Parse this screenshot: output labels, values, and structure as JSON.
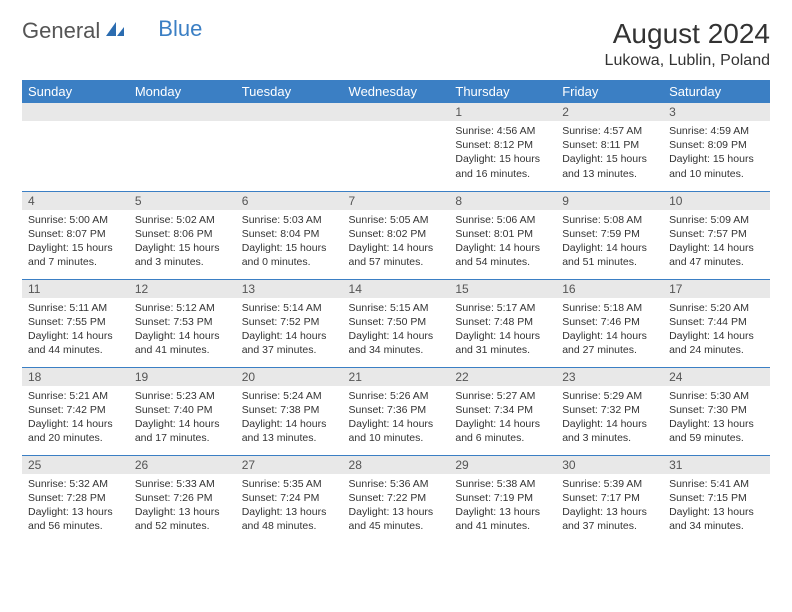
{
  "logo": {
    "text1": "General",
    "text2": "Blue"
  },
  "title": "August 2024",
  "location": "Lukowa, Lublin, Poland",
  "colors": {
    "header_bg": "#3b7fc4",
    "header_text": "#ffffff",
    "daynum_bg": "#e8e8e8",
    "rule": "#3b7fc4",
    "body_text": "#333333"
  },
  "weekdays": [
    "Sunday",
    "Monday",
    "Tuesday",
    "Wednesday",
    "Thursday",
    "Friday",
    "Saturday"
  ],
  "weeks": [
    [
      null,
      null,
      null,
      null,
      {
        "n": "1",
        "sr": "Sunrise: 4:56 AM",
        "ss": "Sunset: 8:12 PM",
        "dl": "Daylight: 15 hours and 16 minutes."
      },
      {
        "n": "2",
        "sr": "Sunrise: 4:57 AM",
        "ss": "Sunset: 8:11 PM",
        "dl": "Daylight: 15 hours and 13 minutes."
      },
      {
        "n": "3",
        "sr": "Sunrise: 4:59 AM",
        "ss": "Sunset: 8:09 PM",
        "dl": "Daylight: 15 hours and 10 minutes."
      }
    ],
    [
      {
        "n": "4",
        "sr": "Sunrise: 5:00 AM",
        "ss": "Sunset: 8:07 PM",
        "dl": "Daylight: 15 hours and 7 minutes."
      },
      {
        "n": "5",
        "sr": "Sunrise: 5:02 AM",
        "ss": "Sunset: 8:06 PM",
        "dl": "Daylight: 15 hours and 3 minutes."
      },
      {
        "n": "6",
        "sr": "Sunrise: 5:03 AM",
        "ss": "Sunset: 8:04 PM",
        "dl": "Daylight: 15 hours and 0 minutes."
      },
      {
        "n": "7",
        "sr": "Sunrise: 5:05 AM",
        "ss": "Sunset: 8:02 PM",
        "dl": "Daylight: 14 hours and 57 minutes."
      },
      {
        "n": "8",
        "sr": "Sunrise: 5:06 AM",
        "ss": "Sunset: 8:01 PM",
        "dl": "Daylight: 14 hours and 54 minutes."
      },
      {
        "n": "9",
        "sr": "Sunrise: 5:08 AM",
        "ss": "Sunset: 7:59 PM",
        "dl": "Daylight: 14 hours and 51 minutes."
      },
      {
        "n": "10",
        "sr": "Sunrise: 5:09 AM",
        "ss": "Sunset: 7:57 PM",
        "dl": "Daylight: 14 hours and 47 minutes."
      }
    ],
    [
      {
        "n": "11",
        "sr": "Sunrise: 5:11 AM",
        "ss": "Sunset: 7:55 PM",
        "dl": "Daylight: 14 hours and 44 minutes."
      },
      {
        "n": "12",
        "sr": "Sunrise: 5:12 AM",
        "ss": "Sunset: 7:53 PM",
        "dl": "Daylight: 14 hours and 41 minutes."
      },
      {
        "n": "13",
        "sr": "Sunrise: 5:14 AM",
        "ss": "Sunset: 7:52 PM",
        "dl": "Daylight: 14 hours and 37 minutes."
      },
      {
        "n": "14",
        "sr": "Sunrise: 5:15 AM",
        "ss": "Sunset: 7:50 PM",
        "dl": "Daylight: 14 hours and 34 minutes."
      },
      {
        "n": "15",
        "sr": "Sunrise: 5:17 AM",
        "ss": "Sunset: 7:48 PM",
        "dl": "Daylight: 14 hours and 31 minutes."
      },
      {
        "n": "16",
        "sr": "Sunrise: 5:18 AM",
        "ss": "Sunset: 7:46 PM",
        "dl": "Daylight: 14 hours and 27 minutes."
      },
      {
        "n": "17",
        "sr": "Sunrise: 5:20 AM",
        "ss": "Sunset: 7:44 PM",
        "dl": "Daylight: 14 hours and 24 minutes."
      }
    ],
    [
      {
        "n": "18",
        "sr": "Sunrise: 5:21 AM",
        "ss": "Sunset: 7:42 PM",
        "dl": "Daylight: 14 hours and 20 minutes."
      },
      {
        "n": "19",
        "sr": "Sunrise: 5:23 AM",
        "ss": "Sunset: 7:40 PM",
        "dl": "Daylight: 14 hours and 17 minutes."
      },
      {
        "n": "20",
        "sr": "Sunrise: 5:24 AM",
        "ss": "Sunset: 7:38 PM",
        "dl": "Daylight: 14 hours and 13 minutes."
      },
      {
        "n": "21",
        "sr": "Sunrise: 5:26 AM",
        "ss": "Sunset: 7:36 PM",
        "dl": "Daylight: 14 hours and 10 minutes."
      },
      {
        "n": "22",
        "sr": "Sunrise: 5:27 AM",
        "ss": "Sunset: 7:34 PM",
        "dl": "Daylight: 14 hours and 6 minutes."
      },
      {
        "n": "23",
        "sr": "Sunrise: 5:29 AM",
        "ss": "Sunset: 7:32 PM",
        "dl": "Daylight: 14 hours and 3 minutes."
      },
      {
        "n": "24",
        "sr": "Sunrise: 5:30 AM",
        "ss": "Sunset: 7:30 PM",
        "dl": "Daylight: 13 hours and 59 minutes."
      }
    ],
    [
      {
        "n": "25",
        "sr": "Sunrise: 5:32 AM",
        "ss": "Sunset: 7:28 PM",
        "dl": "Daylight: 13 hours and 56 minutes."
      },
      {
        "n": "26",
        "sr": "Sunrise: 5:33 AM",
        "ss": "Sunset: 7:26 PM",
        "dl": "Daylight: 13 hours and 52 minutes."
      },
      {
        "n": "27",
        "sr": "Sunrise: 5:35 AM",
        "ss": "Sunset: 7:24 PM",
        "dl": "Daylight: 13 hours and 48 minutes."
      },
      {
        "n": "28",
        "sr": "Sunrise: 5:36 AM",
        "ss": "Sunset: 7:22 PM",
        "dl": "Daylight: 13 hours and 45 minutes."
      },
      {
        "n": "29",
        "sr": "Sunrise: 5:38 AM",
        "ss": "Sunset: 7:19 PM",
        "dl": "Daylight: 13 hours and 41 minutes."
      },
      {
        "n": "30",
        "sr": "Sunrise: 5:39 AM",
        "ss": "Sunset: 7:17 PM",
        "dl": "Daylight: 13 hours and 37 minutes."
      },
      {
        "n": "31",
        "sr": "Sunrise: 5:41 AM",
        "ss": "Sunset: 7:15 PM",
        "dl": "Daylight: 13 hours and 34 minutes."
      }
    ]
  ]
}
